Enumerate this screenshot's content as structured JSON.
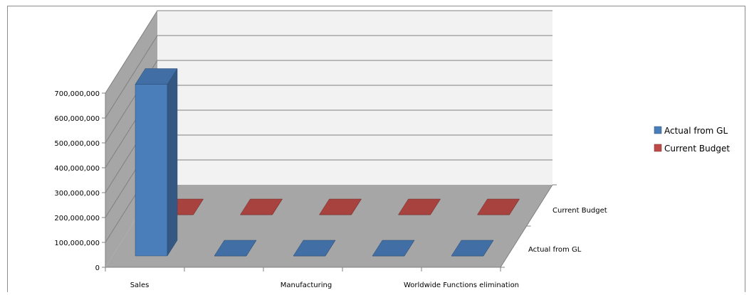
{
  "chart_data": {
    "type": "bar",
    "projection": "3d",
    "categories": [
      "Sales",
      "",
      "Manufacturing",
      "",
      "Worldwide Functions elimination"
    ],
    "depth_labels": [
      "Current Budget",
      "Actual from GL"
    ],
    "series": [
      {
        "name": "Actual from GL",
        "values": [
          690000000,
          0,
          0,
          0,
          0
        ],
        "color": "#4A7EBB"
      },
      {
        "name": "Current Budget",
        "values": [
          0,
          0,
          0,
          0,
          0
        ],
        "color": "#BE4B48"
      }
    ],
    "yticks": [
      "0",
      "100,000,000",
      "200,000,000",
      "300,000,000",
      "400,000,000",
      "500,000,000",
      "600,000,000",
      "700,000,000"
    ],
    "ylim": [
      0,
      700000000
    ],
    "legend": "right",
    "grid": true
  },
  "legend_items": [
    {
      "label": "Actual from GL",
      "color": "#4A7EBB"
    },
    {
      "label": "Current Budget",
      "color": "#BE4B48"
    }
  ]
}
